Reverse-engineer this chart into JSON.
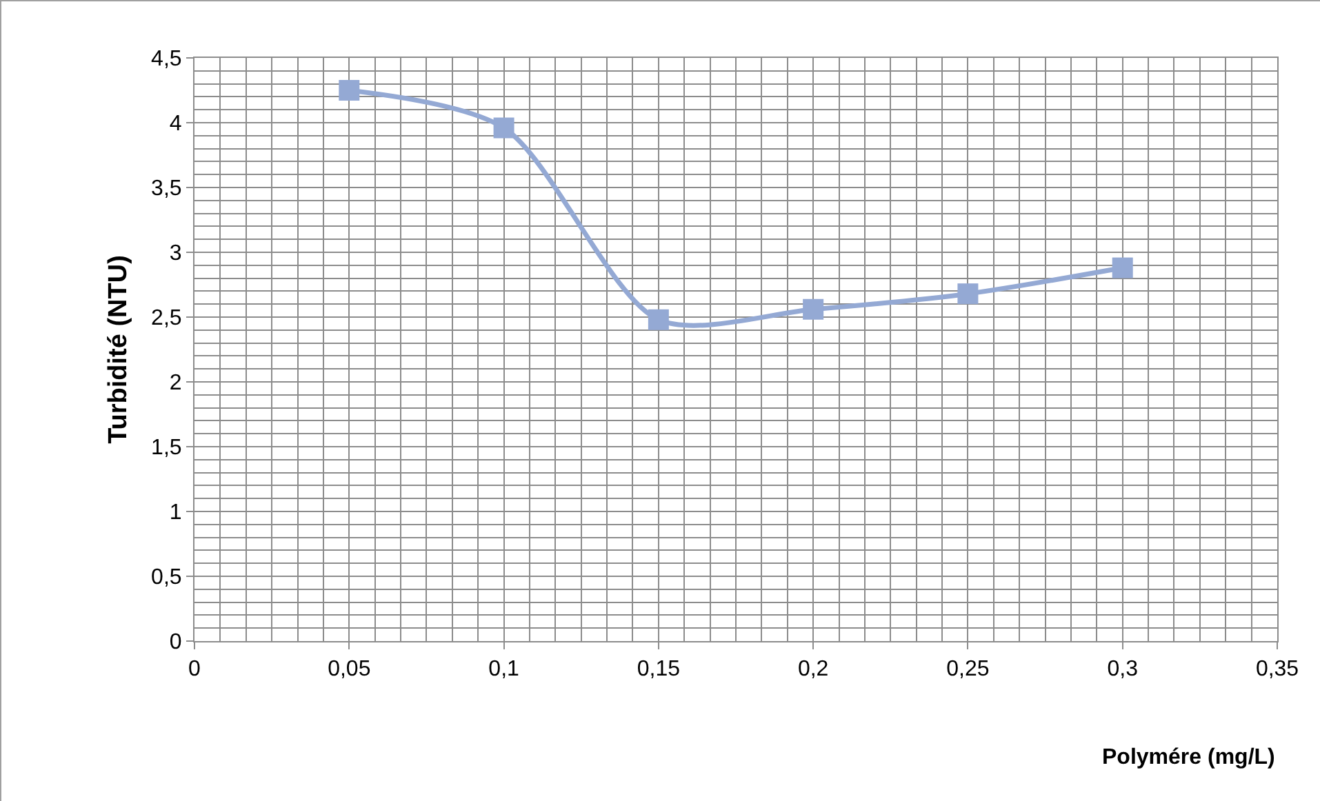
{
  "chart_data": {
    "type": "line",
    "xlabel": "Polymére (mg/L)",
    "ylabel": "Turbidité (NTU)",
    "x": [
      0.05,
      0.1,
      0.15,
      0.2,
      0.25,
      0.3
    ],
    "series": [
      {
        "color": "#94a9d4",
        "values": [
          4.25,
          3.96,
          2.48,
          2.56,
          2.68,
          2.88
        ]
      }
    ],
    "xlim": [
      0,
      0.35
    ],
    "xticks": [
      0,
      {
        "value": 0.05,
        "label": "0,05"
      },
      {
        "value": 0.1,
        "label": "0,1"
      },
      {
        "value": 0.15,
        "label": "0,15"
      },
      {
        "value": 0.2,
        "label": "0,2"
      },
      {
        "value": 0.25,
        "label": "0,25"
      },
      {
        "value": 0.3,
        "label": "0,3"
      },
      {
        "value": 0.35,
        "label": "0,35"
      }
    ],
    "ylim": [
      0,
      4.5
    ],
    "yticks": [
      0,
      {
        "value": 0.5,
        "label": "0,5"
      },
      1,
      {
        "value": 1.5,
        "label": "1,5"
      },
      2,
      {
        "value": 2.5,
        "label": "2,5"
      },
      3,
      {
        "value": 3.5,
        "label": "3,5"
      },
      4,
      {
        "value": 4.5,
        "label": "4,5"
      }
    ],
    "grid": true,
    "marker": "square",
    "line_style": "solid",
    "legend": false
  }
}
